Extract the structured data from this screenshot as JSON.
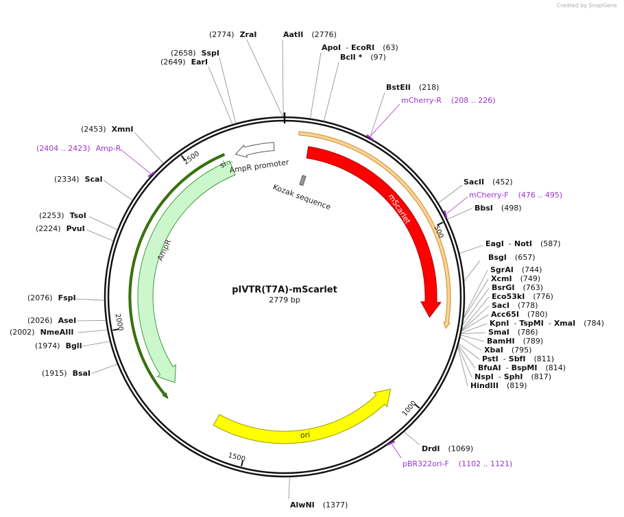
{
  "credit": "Created by SnapGene",
  "title": "pIVTR(T7A)-mScarlet",
  "length": "2779 bp",
  "separator": "-",
  "sites": [
    {
      "names": [
        "ZraI"
      ],
      "position": "(2774)"
    },
    {
      "names": [
        "AatII"
      ],
      "position": "(2776)"
    },
    {
      "names": [
        "ApoI",
        "EcoRI"
      ],
      "position": "(63)"
    },
    {
      "names": [
        "BclI *"
      ],
      "position": "(97)"
    },
    {
      "names": [
        "BstEII"
      ],
      "position": "(218)"
    },
    {
      "names": [
        "SacII"
      ],
      "position": "(452)"
    },
    {
      "names": [
        "BbsI"
      ],
      "position": "(498)"
    },
    {
      "names": [
        "EagI",
        "NotI"
      ],
      "position": "(587)"
    },
    {
      "names": [
        "BsgI"
      ],
      "position": "(657)"
    },
    {
      "names": [
        "SgrAI"
      ],
      "position": "(744)"
    },
    {
      "names": [
        "XcmI"
      ],
      "position": "(749)"
    },
    {
      "names": [
        "BsrGI"
      ],
      "position": "(763)"
    },
    {
      "names": [
        "Eco53kI"
      ],
      "position": "(776)"
    },
    {
      "names": [
        "SacI"
      ],
      "position": "(778)"
    },
    {
      "names": [
        "Acc65I"
      ],
      "position": "(780)"
    },
    {
      "names": [
        "KpnI",
        "TspMI",
        "XmaI"
      ],
      "position": "(784)"
    },
    {
      "names": [
        "SmaI"
      ],
      "position": "(786)"
    },
    {
      "names": [
        "BamHI"
      ],
      "position": "(789)"
    },
    {
      "names": [
        "XbaI"
      ],
      "position": "(795)"
    },
    {
      "names": [
        "PstI",
        "SbfI"
      ],
      "position": "(811)"
    },
    {
      "names": [
        "BfuAI",
        "BspMI"
      ],
      "position": "(814)"
    },
    {
      "names": [
        "NspI",
        "SphI"
      ],
      "position": "(817)"
    },
    {
      "names": [
        "HindIII"
      ],
      "position": "(819)"
    },
    {
      "names": [
        "DrdI"
      ],
      "position": "(1069)"
    },
    {
      "names": [
        "AlwNI"
      ],
      "position": "(1377)"
    },
    {
      "names": [
        "SspI"
      ],
      "position": "(2658)"
    },
    {
      "names": [
        "EarI"
      ],
      "position": "(2649)"
    },
    {
      "names": [
        "XmnI"
      ],
      "position": "(2453)"
    },
    {
      "names": [
        "ScaI"
      ],
      "position": "(2334)"
    },
    {
      "names": [
        "TsoI"
      ],
      "position": "(2253)"
    },
    {
      "names": [
        "PvuI"
      ],
      "position": "(2224)"
    },
    {
      "names": [
        "FspI"
      ],
      "position": "(2076)"
    },
    {
      "names": [
        "AseI"
      ],
      "position": "(2026)"
    },
    {
      "names": [
        "NmeAIII"
      ],
      "position": "(2002)"
    },
    {
      "names": [
        "BglI"
      ],
      "position": "(1974)"
    },
    {
      "names": [
        "BsaI"
      ],
      "position": "(1915)"
    }
  ],
  "primers": [
    {
      "name": "mCherry-R",
      "range": "(208 .. 226)"
    },
    {
      "name": "mCherry-F",
      "range": "(476 .. 495)"
    },
    {
      "name": "Amp-R",
      "range": "(2404 .. 2423)"
    },
    {
      "name": "pBR322ori-F",
      "range": "(1102 .. 1121)"
    }
  ],
  "features": {
    "mscarlet": "mScarlet",
    "ampr": "AmpR",
    "ampr_promoter": "AmpR promoter",
    "ori": "ori",
    "kozak": "Kozak sequence",
    "signal": "si..."
  },
  "ticks": [
    500,
    1000,
    1500,
    2000,
    2500
  ]
}
